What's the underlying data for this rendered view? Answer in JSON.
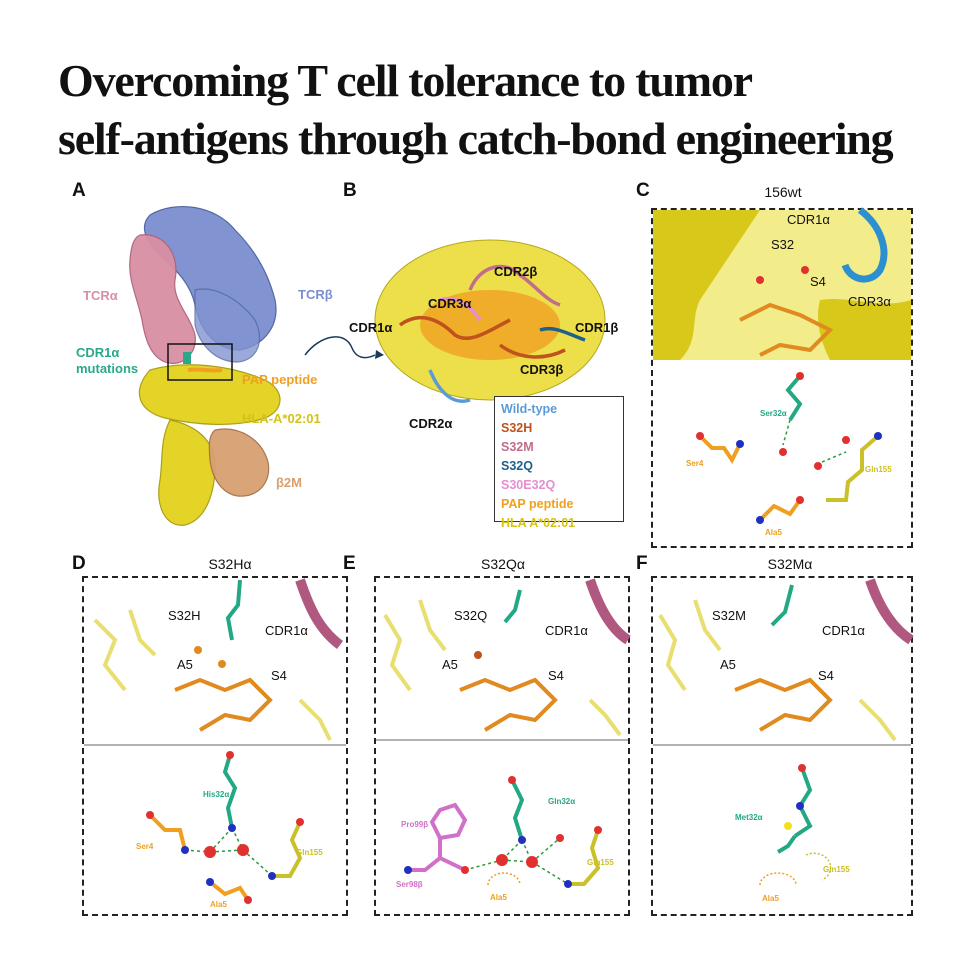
{
  "title_line1": "Overcoming T cell tolerance to tumor",
  "title_line2": "self-antigens through catch-bond engineering",
  "panels": {
    "A": {
      "letter": "A",
      "tcra": "TCRα",
      "tcrb": "TCRβ",
      "cdr1a_mut_line1": "CDR1α",
      "cdr1a_mut_line2": "mutations",
      "pap": "PAP peptide",
      "hla": "HLA-A*02:01",
      "b2m": "β2M"
    },
    "B": {
      "letter": "B",
      "cdr2b": "CDR2β",
      "cdr3a": "CDR3α",
      "cdr1a": "CDR1α",
      "cdr1b": "CDR1β",
      "cdr3b": "CDR3β",
      "cdr2a": "CDR2α",
      "legend": [
        {
          "label": "Wild-type",
          "color": "#5b9bd5"
        },
        {
          "label": "S32H",
          "color": "#c0521d"
        },
        {
          "label": "S32M",
          "color": "#c06e8a"
        },
        {
          "label": "S32Q",
          "color": "#1f5f8b"
        },
        {
          "label": "S30E32Q",
          "color": "#e58fd0"
        },
        {
          "label": "PAP peptide",
          "color": "#f0a020"
        },
        {
          "label": "HLA A*02:01",
          "color": "#d4c21a"
        }
      ]
    },
    "C": {
      "letter": "C",
      "title": "156wt",
      "cdr1a": "CDR1α",
      "s32": "S32",
      "s4": "S4",
      "cdr3a": "CDR3α",
      "res1": "Ser32α",
      "res2": "Ser4",
      "res3": "Gln155",
      "res4": "Ala5"
    },
    "D": {
      "letter": "D",
      "title": "S32Hα",
      "mut": "S32H",
      "cdr1a": "CDR1α",
      "a5": "A5",
      "s4": "S4",
      "res1": "His32α",
      "res2": "Ser4",
      "res3": "Gln155",
      "res4": "Ala5"
    },
    "E": {
      "letter": "E",
      "title": "S32Qα",
      "mut": "S32Q",
      "cdr1a": "CDR1α",
      "a5": "A5",
      "s4": "S4",
      "res1": "Gln32α",
      "res2": "Pro99β",
      "res3": "Ser98β",
      "res4": "Ala5",
      "res5": "Gln155"
    },
    "F": {
      "letter": "F",
      "title": "S32Mα",
      "mut": "S32M",
      "cdr1a": "CDR1α",
      "a5": "A5",
      "s4": "S4",
      "res1": "Met32α",
      "res2": "Gln155",
      "res3": "Ala5"
    }
  },
  "colors": {
    "tcra": "#d98fa3",
    "tcrb": "#7b8fcf",
    "cdr1a_mut": "#2aa88a",
    "pap": "#f0a020",
    "hla": "#d4c21a",
    "b2m": "#d8a070",
    "surface": "#e8dc3a",
    "teal_res": "#22a884",
    "orange_res": "#f0a020",
    "yellow_res": "#c9c02a",
    "pink_res": "#d070c8"
  }
}
